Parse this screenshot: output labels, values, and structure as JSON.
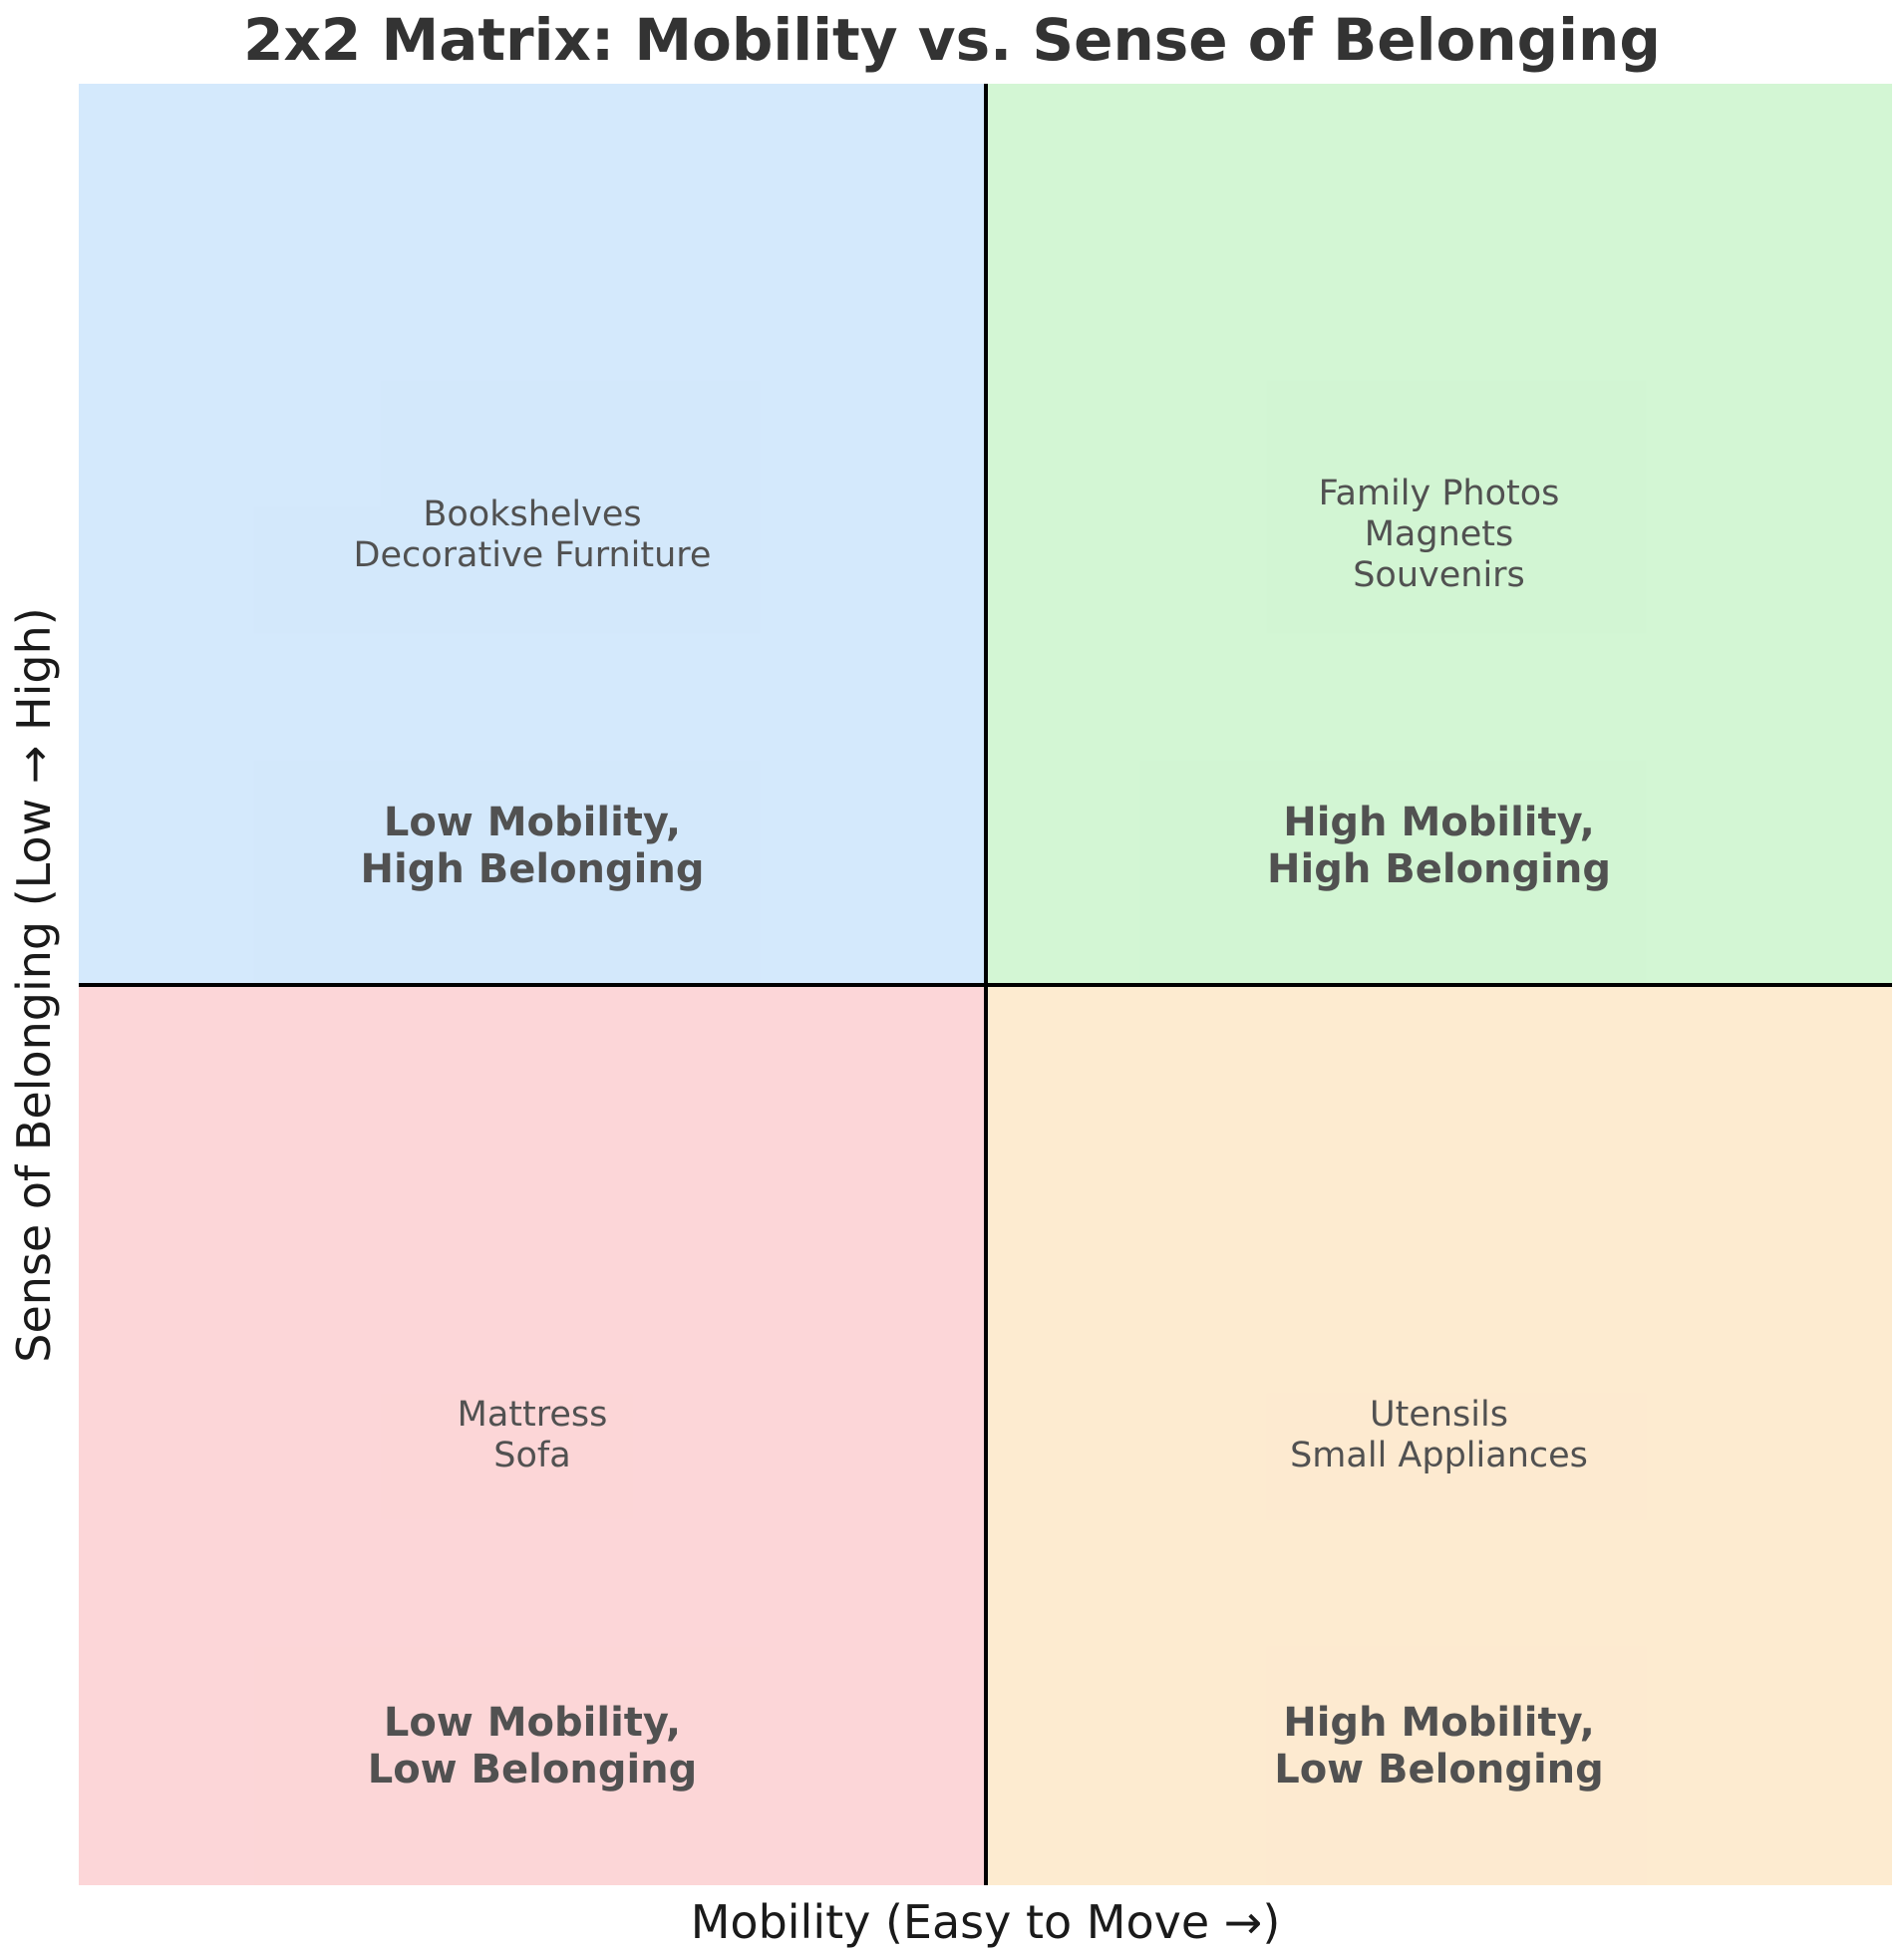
{
  "title": "2x2 Matrix: Mobility vs. Sense of Belonging",
  "xlabel": "Mobility (Easy to Move →)",
  "ylabel": "Sense of Belonging (Low → High)",
  "quadrants": {
    "top_left": {
      "label_line1": "Low Mobility,",
      "label_line2": "High Belonging",
      "items": [
        "Bookshelves",
        "Decorative Furniture"
      ],
      "color": "#cce5fb"
    },
    "top_right": {
      "label_line1": "High Mobility,",
      "label_line2": "High Belonging",
      "items": [
        "Family Photos",
        "Magnets",
        "Souvenirs"
      ],
      "color": "#cbf4cc"
    },
    "bottom_left": {
      "label_line1": "Low Mobility,",
      "label_line2": "Low Belonging",
      "items": [
        "Mattress",
        "Sofa"
      ],
      "color": "#fccfd1"
    },
    "bottom_right": {
      "label_line1": "High Mobility,",
      "label_line2": "Low Belonging",
      "items": [
        "Utensils",
        "Small Appliances"
      ],
      "color": "#fde7c8"
    }
  }
}
